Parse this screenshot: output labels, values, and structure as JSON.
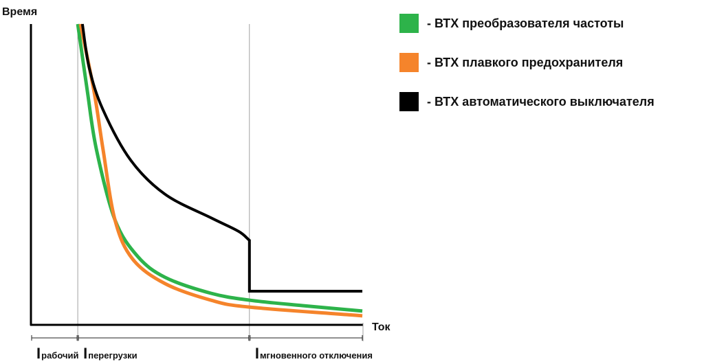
{
  "chart_data": {
    "type": "line",
    "title": "",
    "xlabel": "Ток",
    "ylabel": "Время",
    "xlim": [
      0,
      100
    ],
    "ylim": [
      0,
      100
    ],
    "grid": false,
    "units_note": "relative",
    "regions": [
      {
        "label_main": "I",
        "label_sub": "рабочий",
        "from": 0,
        "to": 14.1
      },
      {
        "label_main": "I",
        "label_sub": "перегрузки",
        "from": 14.1,
        "to": 65.8
      },
      {
        "label_main": "I",
        "label_sub": "мгновенного отключения",
        "from": 65.8,
        "to": 100
      }
    ],
    "legend_position": "top-right",
    "series": [
      {
        "name": "- ВТХ преобразователя частоты",
        "color": "#2db34a",
        "x": [
          14.1,
          17.0,
          19.7,
          25.3,
          32.1,
          40.4,
          54.2,
          65.8,
          81.8,
          99.8
        ],
        "y": [
          100,
          77.6,
          58.4,
          34.9,
          22.8,
          15.8,
          10.5,
          8.2,
          6.4,
          4.6
        ]
      },
      {
        "name": "- ВТХ плавкого предохранителя",
        "color": "#f5842b",
        "x": [
          14.9,
          19.0,
          21.7,
          25.3,
          30.6,
          40.4,
          54.2,
          65.8,
          99.8
        ],
        "y": [
          100,
          77.6,
          58.4,
          34.9,
          21.9,
          13.7,
          8.2,
          5.9,
          3.0
        ]
      },
      {
        "name": "- ВТХ автоматического выключателя",
        "color": "#000000",
        "x": [
          15.5,
          17.6,
          21.7,
          30.0,
          40.4,
          54.2,
          62.5,
          65.8,
          65.8,
          99.8
        ],
        "y": [
          100,
          85.2,
          71.5,
          54.8,
          43.4,
          35.6,
          31.1,
          28.1,
          11.2,
          11.2
        ]
      }
    ]
  }
}
